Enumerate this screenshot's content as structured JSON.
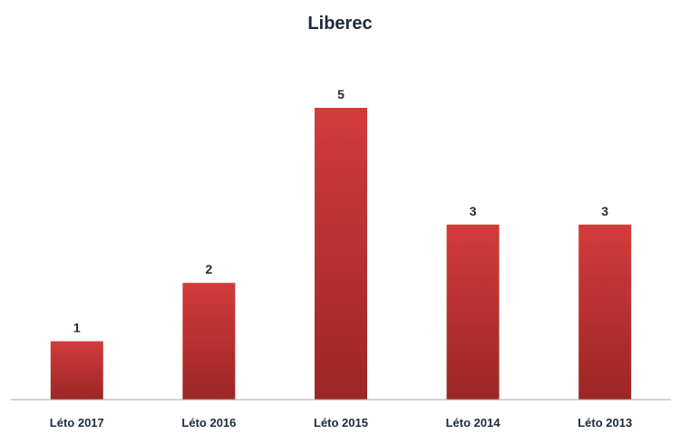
{
  "chart_data": {
    "type": "bar",
    "title": "Liberec",
    "categories": [
      "Léto 2017",
      "Léto 2016",
      "Léto 2015",
      "Léto 2014",
      "Léto 2013"
    ],
    "values": [
      1,
      2,
      5,
      3,
      3
    ],
    "xlabel": "",
    "ylabel": "",
    "ylim": [
      0,
      5
    ],
    "grid": false,
    "legend": "none",
    "data_labels": true,
    "colors": {
      "bar_top": "#d33b3b",
      "bar_bottom": "#9c2626",
      "axis": "#a6a6a6",
      "text": "#1f2a3a"
    }
  }
}
